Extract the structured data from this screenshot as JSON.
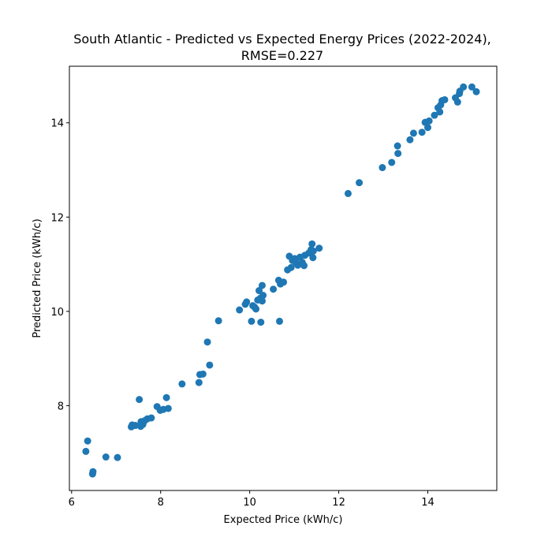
{
  "chart_data": {
    "type": "scatter",
    "title_line1": "South Atlantic - Predicted vs Expected Energy Prices (2022-2024),",
    "title_line2": "RMSE=0.227",
    "xlabel": "Expected Price (kWh/c)",
    "ylabel": "Predicted Price (kWh/c)",
    "xlim": [
      5.95,
      15.55
    ],
    "ylim": [
      6.2,
      15.2
    ],
    "xticks": [
      6,
      8,
      10,
      12,
      14
    ],
    "yticks": [
      8,
      10,
      12,
      14
    ],
    "grid": false,
    "marker_color": "#1f77b4",
    "points": [
      [
        6.32,
        7.03
      ],
      [
        6.36,
        7.25
      ],
      [
        6.47,
        6.55
      ],
      [
        6.48,
        6.6
      ],
      [
        6.77,
        6.91
      ],
      [
        7.03,
        6.9
      ],
      [
        7.34,
        7.55
      ],
      [
        7.36,
        7.59
      ],
      [
        7.43,
        7.58
      ],
      [
        7.52,
        8.13
      ],
      [
        7.55,
        7.56
      ],
      [
        7.56,
        7.66
      ],
      [
        7.6,
        7.6
      ],
      [
        7.64,
        7.68
      ],
      [
        7.7,
        7.72
      ],
      [
        7.79,
        7.74
      ],
      [
        7.92,
        7.98
      ],
      [
        7.99,
        7.9
      ],
      [
        8.06,
        7.92
      ],
      [
        8.13,
        8.17
      ],
      [
        8.17,
        7.94
      ],
      [
        8.48,
        8.46
      ],
      [
        8.86,
        8.49
      ],
      [
        8.88,
        8.66
      ],
      [
        8.95,
        8.67
      ],
      [
        9.05,
        9.35
      ],
      [
        9.1,
        8.86
      ],
      [
        9.3,
        9.8
      ],
      [
        9.77,
        10.03
      ],
      [
        9.9,
        10.15
      ],
      [
        9.93,
        10.2
      ],
      [
        10.04,
        9.79
      ],
      [
        10.07,
        10.12
      ],
      [
        10.11,
        10.09
      ],
      [
        10.14,
        10.05
      ],
      [
        10.18,
        10.24
      ],
      [
        10.21,
        10.44
      ],
      [
        10.24,
        10.28
      ],
      [
        10.25,
        9.77
      ],
      [
        10.28,
        10.22
      ],
      [
        10.28,
        10.55
      ],
      [
        10.3,
        10.34
      ],
      [
        10.53,
        10.47
      ],
      [
        10.65,
        10.66
      ],
      [
        10.67,
        9.79
      ],
      [
        10.69,
        10.58
      ],
      [
        10.76,
        10.62
      ],
      [
        10.85,
        10.88
      ],
      [
        10.89,
        11.17
      ],
      [
        10.93,
        10.93
      ],
      [
        10.96,
        11.08
      ],
      [
        11.01,
        11.12
      ],
      [
        11.04,
        11.03
      ],
      [
        11.08,
        10.98
      ],
      [
        11.13,
        11.15
      ],
      [
        11.18,
        11.04
      ],
      [
        11.22,
        10.97
      ],
      [
        11.24,
        11.19
      ],
      [
        11.33,
        11.24
      ],
      [
        11.38,
        11.31
      ],
      [
        11.4,
        11.43
      ],
      [
        11.42,
        11.14
      ],
      [
        11.43,
        11.28
      ],
      [
        11.56,
        11.34
      ],
      [
        12.21,
        12.5
      ],
      [
        12.46,
        12.73
      ],
      [
        12.98,
        13.05
      ],
      [
        13.19,
        13.16
      ],
      [
        13.32,
        13.51
      ],
      [
        13.33,
        13.35
      ],
      [
        13.6,
        13.64
      ],
      [
        13.68,
        13.78
      ],
      [
        13.87,
        13.8
      ],
      [
        13.94,
        14.01
      ],
      [
        14.0,
        13.9
      ],
      [
        14.03,
        14.04
      ],
      [
        14.15,
        14.16
      ],
      [
        14.23,
        14.32
      ],
      [
        14.27,
        14.23
      ],
      [
        14.29,
        14.38
      ],
      [
        14.32,
        14.47
      ],
      [
        14.38,
        14.49
      ],
      [
        14.62,
        14.53
      ],
      [
        14.67,
        14.44
      ],
      [
        14.71,
        14.62
      ],
      [
        14.72,
        14.67
      ],
      [
        14.8,
        14.76
      ],
      [
        14.99,
        14.76
      ],
      [
        15.09,
        14.66
      ]
    ]
  }
}
